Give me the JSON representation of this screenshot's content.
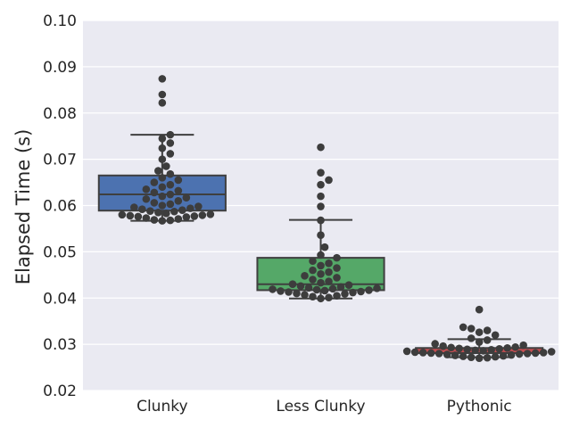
{
  "chart_data": {
    "type": "box",
    "title": "",
    "xlabel": "",
    "ylabel": "Elapsed Time (s)",
    "ylim": [
      0.02,
      0.1
    ],
    "yticks": [
      "0.02",
      "0.03",
      "0.04",
      "0.05",
      "0.06",
      "0.07",
      "0.08",
      "0.09",
      "0.10"
    ],
    "grid": true,
    "overlay": "swarm points",
    "categories": [
      "Clunky",
      "Less Clunky",
      "Pythonic"
    ],
    "colors": {
      "background": "#EAEAF2",
      "grid": "#FFFFFF",
      "box_edge": "#3F3F3F",
      "point": "#3D3D3D",
      "median": "#3F3F3F",
      "pythonic_median": "#C44E52"
    },
    "boxes": [
      {
        "category": "Clunky",
        "color": "#4C72B0",
        "q1": 0.0589,
        "median": 0.0624,
        "q3": 0.0665,
        "whisker_low": 0.0567,
        "whisker_high": 0.0753,
        "points": [
          0.0567,
          0.0568,
          0.0569,
          0.0571,
          0.0573,
          0.0575,
          0.0576,
          0.0577,
          0.0578,
          0.0579,
          0.058,
          0.0581,
          0.0583,
          0.0585,
          0.0587,
          0.0588,
          0.059,
          0.0592,
          0.0594,
          0.0596,
          0.0598,
          0.06,
          0.0603,
          0.0606,
          0.061,
          0.0614,
          0.0617,
          0.062,
          0.0624,
          0.0628,
          0.0632,
          0.0635,
          0.064,
          0.0645,
          0.065,
          0.0655,
          0.066,
          0.0668,
          0.0675,
          0.0685,
          0.07,
          0.0712,
          0.0724,
          0.0735,
          0.0745,
          0.0753,
          0.0822,
          0.084,
          0.0874
        ]
      },
      {
        "category": "Less Clunky",
        "color": "#55A868",
        "q1": 0.0417,
        "median": 0.043,
        "q3": 0.0487,
        "whisker_low": 0.0399,
        "whisker_high": 0.0569,
        "points": [
          0.0399,
          0.0401,
          0.0403,
          0.0405,
          0.0407,
          0.0409,
          0.041,
          0.0412,
          0.0413,
          0.0414,
          0.0415,
          0.0416,
          0.0417,
          0.0418,
          0.0419,
          0.042,
          0.0421,
          0.0422,
          0.0424,
          0.0426,
          0.0428,
          0.043,
          0.0433,
          0.0436,
          0.044,
          0.0444,
          0.0448,
          0.0452,
          0.0456,
          0.046,
          0.0465,
          0.047,
          0.0475,
          0.048,
          0.0487,
          0.0493,
          0.051,
          0.0536,
          0.0568,
          0.0598,
          0.062,
          0.0645,
          0.0655,
          0.0671,
          0.0726
        ]
      },
      {
        "category": "Pythonic",
        "color": "#C44E52",
        "q1": 0.0281,
        "median": 0.0287,
        "q3": 0.0292,
        "whisker_low": 0.0272,
        "whisker_high": 0.0311,
        "points": [
          0.027,
          0.0271,
          0.0272,
          0.0273,
          0.0274,
          0.0275,
          0.0276,
          0.0277,
          0.0278,
          0.0279,
          0.028,
          0.028,
          0.0281,
          0.0281,
          0.0282,
          0.0282,
          0.0283,
          0.0284,
          0.0285,
          0.0286,
          0.0287,
          0.0288,
          0.0289,
          0.029,
          0.0291,
          0.0292,
          0.0293,
          0.0294,
          0.0296,
          0.0298,
          0.0301,
          0.0305,
          0.0309,
          0.0313,
          0.032,
          0.0326,
          0.033,
          0.0334,
          0.0337,
          0.0375
        ]
      }
    ]
  }
}
